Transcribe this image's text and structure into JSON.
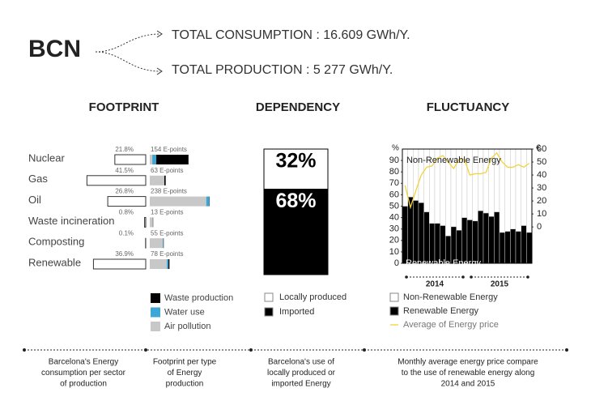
{
  "header": {
    "title": "BCN",
    "consumption": "TOTAL CONSUMPTION : 16.609 GWh/Y.",
    "production": "TOTAL PRODUCTION : 5 277 GWh/Y."
  },
  "chart_data": [
    {
      "type": "footprint",
      "title": "FOOTPRINT",
      "categories": [
        "Nuclear",
        "Gas",
        "Oil",
        "Waste incineration",
        "Composting",
        "Renewable"
      ],
      "share": {
        "values": [
          21.8,
          41.5,
          26.8,
          0.8,
          0.1,
          36.9
        ],
        "value_labels": [
          "21.8%",
          "41.5%",
          "26.8%",
          "0.8%",
          "0.1%",
          "36.9%"
        ]
      },
      "epoints": {
        "values": [
          154,
          63,
          238,
          13,
          55,
          78
        ],
        "value_labels": [
          "154 E-points",
          "63 E-points",
          "238 E-points",
          "13 E-points",
          "55 E-points",
          "78 E-points"
        ]
      },
      "series": [
        {
          "name": "Waste production",
          "color": "#000000",
          "values": [
            128,
            5,
            0,
            0,
            0,
            4
          ]
        },
        {
          "name": "Water use",
          "color": "#3ea6d6",
          "values": [
            16,
            0,
            13,
            0,
            3,
            6
          ]
        },
        {
          "name": "Air pollution",
          "color": "#c8c8c8",
          "values": [
            10,
            58,
            225,
            13,
            52,
            68
          ]
        }
      ]
    },
    {
      "type": "stacked-column",
      "title": "DEPENDENCY",
      "ylim": [
        0,
        100
      ],
      "series": [
        {
          "name": "Locally produced",
          "color": "#ffffff",
          "values": [
            32
          ],
          "value_labels": [
            "32%"
          ]
        },
        {
          "name": "Imported",
          "color": "#000000",
          "values": [
            68
          ],
          "value_labels": [
            "68%"
          ]
        }
      ]
    },
    {
      "type": "combo",
      "title": "FLUCTUANCY",
      "y_label": "%",
      "y2_label": "€",
      "categories": [
        null,
        null,
        null,
        null,
        null,
        null,
        null,
        null,
        null,
        null,
        null,
        null,
        null,
        null,
        null,
        null,
        null,
        null,
        null,
        null,
        null,
        null,
        null,
        null
      ],
      "groups": [
        "2014",
        "2015"
      ],
      "ylim": [
        0,
        100
      ],
      "yticks": [
        0,
        10,
        20,
        30,
        40,
        50,
        60,
        70,
        80,
        90
      ],
      "y2lim": [
        -28,
        60
      ],
      "y2ticks": [
        0,
        10,
        20,
        30,
        40,
        50,
        60
      ],
      "series": [
        {
          "name": "Non-Renewable Energy",
          "color": "#ffffff",
          "values": [
            50,
            42,
            45,
            47,
            55,
            65,
            65,
            67,
            76,
            68,
            71,
            60,
            62,
            63,
            54,
            56,
            59,
            55,
            73,
            72,
            70,
            72,
            67,
            73
          ]
        },
        {
          "name": "Renewable Energy",
          "color": "#000000",
          "values": [
            50,
            58,
            55,
            53,
            45,
            35,
            35,
            33,
            24,
            32,
            29,
            40,
            38,
            37,
            46,
            44,
            41,
            45,
            27,
            28,
            30,
            28,
            33,
            27
          ]
        },
        {
          "name": "Average of Energy price",
          "color": "#f2d33c",
          "axis": "y2",
          "values": [
            32,
            15,
            28,
            40,
            46,
            47,
            53,
            55,
            50,
            45,
            52,
            52,
            40,
            41,
            41,
            42,
            53,
            57,
            50,
            46,
            46,
            48,
            46,
            49
          ]
        }
      ]
    }
  ],
  "captions": [
    [
      "Barcelona's Energy",
      "consumption  per sector",
      "of production"
    ],
    [
      "Footprint per type",
      "of Energy",
      "production"
    ],
    [
      "Barcelona's use of",
      "locally produced or",
      "imported Energy"
    ],
    [
      "Monthly average energy price compare",
      "to the use of renewable energy along",
      "2014 and 2015"
    ]
  ]
}
